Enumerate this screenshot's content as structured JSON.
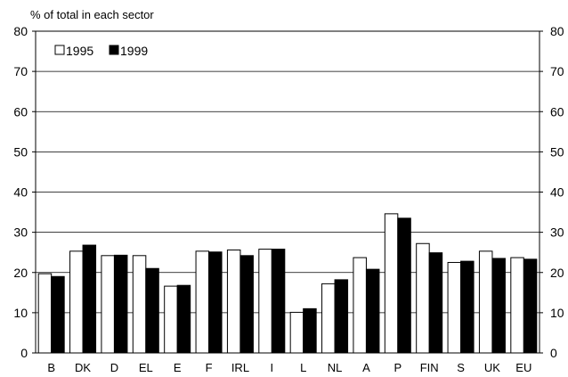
{
  "chart_data": {
    "type": "bar",
    "ylabel": "% of total in each sector",
    "ylim": [
      0,
      80
    ],
    "yticks": [
      0,
      10,
      20,
      30,
      40,
      50,
      60,
      70,
      80
    ],
    "grid": true,
    "legend_position": "top-left",
    "categories": [
      "B",
      "DK",
      "D",
      "EL",
      "E",
      "F",
      "IRL",
      "I",
      "L",
      "NL",
      "A",
      "P",
      "FIN",
      "S",
      "UK",
      "EU"
    ],
    "series": [
      {
        "name": "1995",
        "color": "#ffffff",
        "values": [
          19.7,
          25.3,
          24.2,
          24.2,
          16.6,
          25.3,
          25.6,
          25.8,
          10.1,
          17.2,
          23.7,
          34.6,
          27.2,
          22.5,
          25.3,
          23.7
        ]
      },
      {
        "name": "1999",
        "color": "#000000",
        "values": [
          19.0,
          26.8,
          24.3,
          21.0,
          16.8,
          25.1,
          24.2,
          25.8,
          11.0,
          18.2,
          20.8,
          33.5,
          24.9,
          22.8,
          23.5,
          23.3
        ]
      }
    ]
  }
}
